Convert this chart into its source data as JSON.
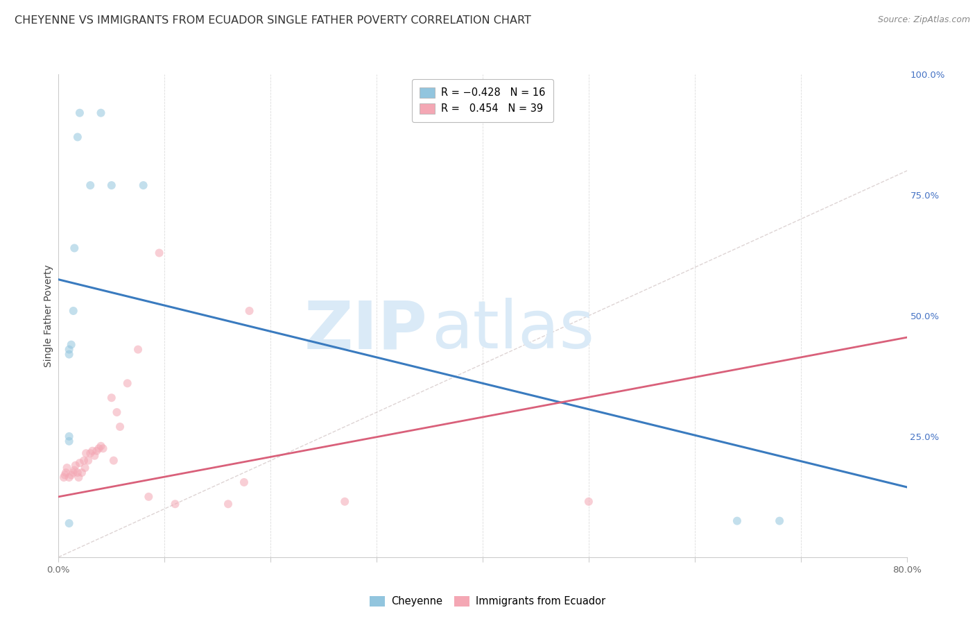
{
  "title": "CHEYENNE VS IMMIGRANTS FROM ECUADOR SINGLE FATHER POVERTY CORRELATION CHART",
  "source": "Source: ZipAtlas.com",
  "ylabel": "Single Father Poverty",
  "xlim": [
    0.0,
    0.8
  ],
  "ylim": [
    0.0,
    1.0
  ],
  "yticks_right": [
    0.0,
    0.25,
    0.5,
    0.75,
    1.0
  ],
  "yticklabels_right": [
    "",
    "25.0%",
    "50.0%",
    "75.0%",
    "100.0%"
  ],
  "blue_color": "#92c5de",
  "pink_color": "#f4a7b4",
  "blue_line_color": "#3a7bbf",
  "pink_line_color": "#d9607a",
  "diagonal_color": "#c8b8b8",
  "watermark_text1": "ZIP",
  "watermark_text2": "atlas",
  "watermark_color": "#daeaf7",
  "legend_label1": "Cheyenne",
  "legend_label2": "Immigrants from Ecuador",
  "blue_scatter_x": [
    0.02,
    0.04,
    0.08,
    0.018,
    0.03,
    0.05,
    0.015,
    0.014,
    0.012,
    0.64,
    0.68,
    0.01,
    0.01,
    0.01,
    0.01,
    0.01
  ],
  "blue_scatter_y": [
    0.92,
    0.92,
    0.77,
    0.87,
    0.77,
    0.77,
    0.64,
    0.51,
    0.44,
    0.075,
    0.075,
    0.43,
    0.25,
    0.42,
    0.24,
    0.07
  ],
  "pink_scatter_x": [
    0.005,
    0.006,
    0.007,
    0.008,
    0.01,
    0.012,
    0.014,
    0.015,
    0.016,
    0.018,
    0.019,
    0.02,
    0.022,
    0.024,
    0.025,
    0.026,
    0.028,
    0.03,
    0.032,
    0.034,
    0.036,
    0.038,
    0.04,
    0.042,
    0.05,
    0.052,
    0.055,
    0.058,
    0.065,
    0.075,
    0.085,
    0.095,
    0.11,
    0.16,
    0.175,
    0.18,
    0.27,
    0.5
  ],
  "pink_scatter_y": [
    0.165,
    0.17,
    0.175,
    0.185,
    0.165,
    0.17,
    0.175,
    0.18,
    0.19,
    0.175,
    0.165,
    0.195,
    0.175,
    0.2,
    0.185,
    0.215,
    0.2,
    0.215,
    0.22,
    0.21,
    0.22,
    0.225,
    0.23,
    0.225,
    0.33,
    0.2,
    0.3,
    0.27,
    0.36,
    0.43,
    0.125,
    0.63,
    0.11,
    0.11,
    0.155,
    0.51,
    0.115,
    0.115
  ],
  "blue_line_x0": 0.0,
  "blue_line_x1": 0.8,
  "blue_line_y0": 0.575,
  "blue_line_y1": 0.145,
  "pink_line_x0": 0.0,
  "pink_line_x1": 0.8,
  "pink_line_y0": 0.125,
  "pink_line_y1": 0.455,
  "marker_size": 75,
  "marker_alpha": 0.55,
  "background_color": "#ffffff",
  "grid_color": "#cccccc",
  "title_fontsize": 11.5,
  "axis_label_fontsize": 10,
  "tick_fontsize": 9.5,
  "legend_fontsize": 10.5,
  "source_fontsize": 9
}
